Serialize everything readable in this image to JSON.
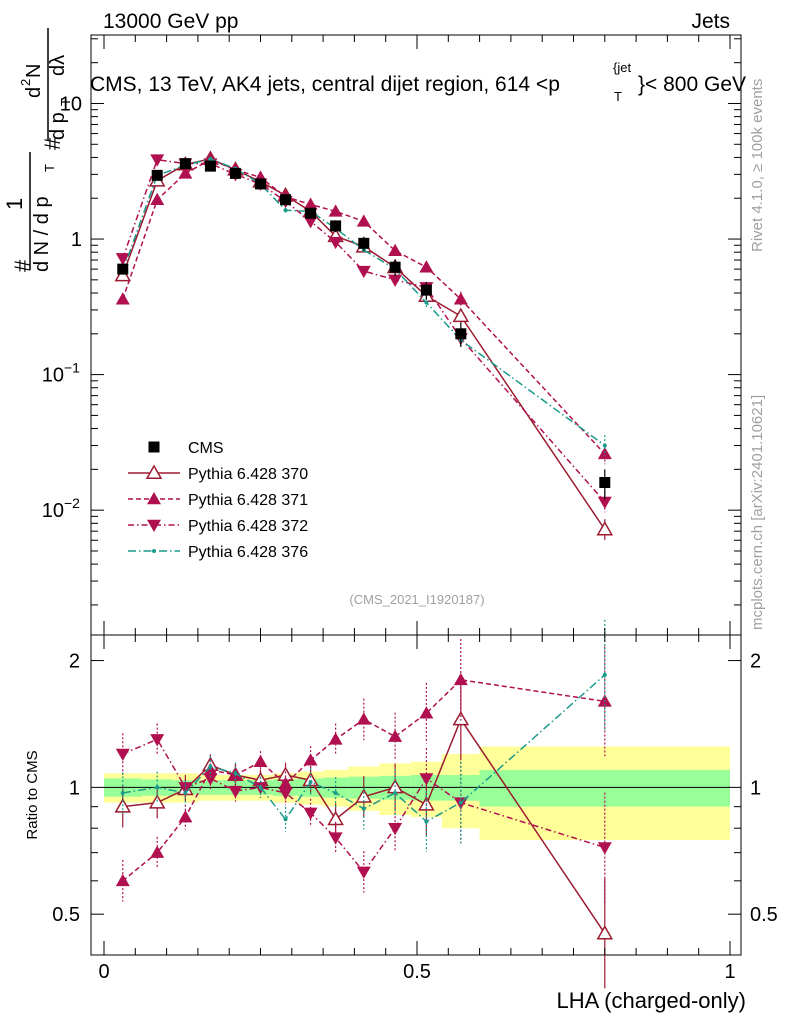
{
  "header": {
    "left": "13000 GeV pp",
    "right": "Jets",
    "title_main": "CMS, 13 TeV, AK4 jets, central dijet region, 614 <p",
    "title_sup": "{jet",
    "title_sub": "T",
    "title_end": "}< 800 GeV"
  },
  "side_texts": {
    "rivet": "Rivet 4.1.0, ≥ 100k events",
    "mcplots": "mcplots.cern.ch [arXiv:2401.10621]"
  },
  "analysis_id": "(CMS_2021_I1920187)",
  "yaxis_main": {
    "hash1": "#",
    "one": "1",
    "dn_dpt": "d N / d p",
    "hash2": "#",
    "d2n": "d",
    "two": "2",
    "n": "N",
    "dpt_dl": "d p",
    "dl": "dλ",
    "t1": "T",
    "t2": "T"
  },
  "yaxis_ratio": "Ratio to CMS",
  "xaxis_label": "LHA (charged-only)",
  "main_ticks": [
    {
      "value": 0.01,
      "base": "10",
      "exp": "−2"
    },
    {
      "value": 0.1,
      "base": "10",
      "exp": "−1"
    },
    {
      "value": 1,
      "base": "1",
      "exp": ""
    },
    {
      "value": 10,
      "base": "10",
      "exp": ""
    }
  ],
  "ratio_ticks": [
    {
      "value": 0.5,
      "label": "0.5"
    },
    {
      "value": 1,
      "label": "1"
    },
    {
      "value": 2,
      "label": "2"
    }
  ],
  "x_ticks": [
    {
      "value": 0,
      "label": "0"
    },
    {
      "value": 0.5,
      "label": "0.5"
    },
    {
      "value": 1,
      "label": "1"
    }
  ],
  "legend": [
    {
      "key": "cms",
      "label": "CMS"
    },
    {
      "key": "p370",
      "label": "Pythia 6.428 370"
    },
    {
      "key": "p371",
      "label": "Pythia 6.428 371"
    },
    {
      "key": "p372",
      "label": "Pythia 6.428 372"
    },
    {
      "key": "p376",
      "label": "Pythia 6.428 376"
    }
  ],
  "chart_data": {
    "type": "line",
    "xlabel": "LHA (charged-only)",
    "ylabel": "1/dN/dpT d2N/dpT dlambda",
    "xlim": [
      0,
      1
    ],
    "ylim_main": [
      0.0012,
      32
    ],
    "yscale_main": "log",
    "ylim_ratio": [
      0.4,
      2.3
    ],
    "yscale_ratio": "log",
    "x": [
      0.03,
      0.085,
      0.13,
      0.17,
      0.21,
      0.25,
      0.29,
      0.33,
      0.37,
      0.415,
      0.465,
      0.515,
      0.57,
      0.8
    ],
    "cms": {
      "name": "CMS",
      "values": [
        0.6,
        2.95,
        3.6,
        3.45,
        3.05,
        2.55,
        1.95,
        1.55,
        1.25,
        0.93,
        0.62,
        0.42,
        0.2,
        0.016
      ],
      "band_inner": [
        0.05,
        0.045,
        0.04,
        0.04,
        0.04,
        0.04,
        0.045,
        0.05,
        0.055,
        0.06,
        0.065,
        0.07,
        0.07,
        0.1
      ],
      "band_outer": [
        0.08,
        0.08,
        0.08,
        0.07,
        0.07,
        0.07,
        0.08,
        0.09,
        0.1,
        0.12,
        0.14,
        0.15,
        0.2,
        0.25
      ]
    },
    "series": [
      {
        "key": "p370",
        "name": "Pythia 6.428 370",
        "color": "#9b1b30",
        "style": "solid",
        "marker": "tri-up-open",
        "values": [
          0.54,
          2.7,
          3.55,
          3.9,
          3.25,
          2.65,
          2.1,
          1.6,
          1.05,
          0.88,
          0.62,
          0.38,
          0.27,
          0.0072
        ]
      },
      {
        "key": "p371",
        "name": "Pythia 6.428 371",
        "color": "#b0104f",
        "style": "dashed",
        "marker": "tri-up-filled",
        "values": [
          0.36,
          1.95,
          3.05,
          3.85,
          3.25,
          2.85,
          2.05,
          1.8,
          1.6,
          1.35,
          0.82,
          0.62,
          0.36,
          0.026
        ]
      },
      {
        "key": "p372",
        "name": "Pythia 6.428 372",
        "color": "#b0104f",
        "style": "dashdot",
        "marker": "tri-down-filled",
        "values": [
          0.72,
          3.85,
          3.6,
          3.6,
          3.0,
          2.55,
          1.9,
          1.35,
          0.95,
          0.58,
          0.5,
          0.44,
          0.185,
          0.0115
        ]
      },
      {
        "key": "p376",
        "name": "Pythia 6.428 376",
        "color": "#1a9a8a",
        "style": "dashdot2",
        "marker": "dot",
        "values": [
          0.58,
          2.95,
          3.5,
          3.9,
          3.3,
          2.55,
          1.63,
          1.6,
          1.2,
          0.83,
          0.6,
          0.34,
          0.18,
          0.03
        ]
      }
    ],
    "ratios": {
      "p370": [
        0.9,
        0.92,
        0.99,
        1.13,
        1.07,
        1.04,
        1.07,
        1.04,
        0.84,
        0.95,
        1.0,
        0.91,
        1.45,
        0.45
      ],
      "p371": [
        0.6,
        0.7,
        0.85,
        1.1,
        1.07,
        1.15,
        1.02,
        1.16,
        1.3,
        1.45,
        1.32,
        1.5,
        1.8,
        1.6
      ],
      "p372": [
        1.2,
        1.3,
        1.0,
        1.05,
        0.98,
        1.0,
        0.97,
        0.87,
        0.76,
        0.63,
        0.8,
        1.05,
        0.92,
        0.72
      ],
      "p376": [
        0.97,
        1.0,
        0.97,
        1.12,
        1.08,
        1.0,
        0.84,
        1.03,
        0.97,
        0.89,
        0.97,
        0.83,
        0.92,
        1.85
      ]
    },
    "ratio_errors": [
      0.12,
      0.09,
      0.07,
      0.06,
      0.06,
      0.06,
      0.07,
      0.08,
      0.09,
      0.12,
      0.14,
      0.18,
      0.25,
      0.35
    ]
  }
}
